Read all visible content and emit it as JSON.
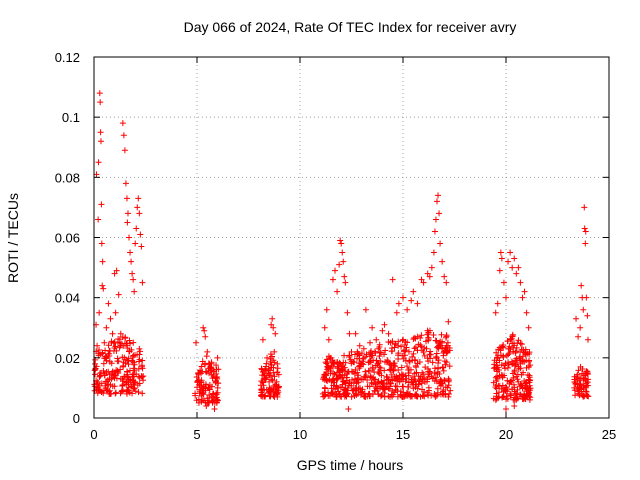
{
  "chart_data": {
    "type": "scatter",
    "title": "Day 066 of 2024, Rate Of TEC Index for receiver avry",
    "xlabel": "GPS time / hours",
    "ylabel": "ROTI / TECUs",
    "xlim": [
      0,
      25
    ],
    "ylim": [
      0,
      0.12
    ],
    "xticks": [
      0,
      5,
      10,
      15,
      20,
      25
    ],
    "xtick_labels": [
      "0",
      "5",
      "10",
      "15",
      "20",
      "25"
    ],
    "yticks": [
      0,
      0.02,
      0.04,
      0.06,
      0.08,
      0.1,
      0.12
    ],
    "ytick_labels": [
      "0",
      "0.02",
      "0.04",
      "0.06",
      "0.08",
      "0.1",
      "0.12"
    ],
    "grid": true,
    "marker": "+",
    "series": [
      {
        "name": "ROTI",
        "color": "#ff0000",
        "points": [
          [
            0.05,
            0.018
          ],
          [
            0.1,
            0.031
          ],
          [
            0.12,
            0.081
          ],
          [
            0.15,
            0.024
          ],
          [
            0.18,
            0.012
          ],
          [
            0.2,
            0.066
          ],
          [
            0.22,
            0.085
          ],
          [
            0.25,
            0.035
          ],
          [
            0.28,
            0.108
          ],
          [
            0.3,
            0.105
          ],
          [
            0.32,
            0.095
          ],
          [
            0.34,
            0.092
          ],
          [
            0.36,
            0.071
          ],
          [
            0.38,
            0.058
          ],
          [
            0.4,
            0.044
          ],
          [
            0.42,
            0.052
          ],
          [
            0.45,
            0.043
          ],
          [
            0.5,
            0.025
          ],
          [
            0.6,
            0.03
          ],
          [
            0.7,
            0.038
          ],
          [
            0.8,
            0.033
          ],
          [
            0.9,
            0.028
          ],
          [
            1.0,
            0.048
          ],
          [
            1.05,
            0.035
          ],
          [
            1.1,
            0.049
          ],
          [
            1.2,
            0.041
          ],
          [
            1.3,
            0.028
          ],
          [
            1.4,
            0.098
          ],
          [
            1.45,
            0.094
          ],
          [
            1.5,
            0.089
          ],
          [
            1.55,
            0.078
          ],
          [
            1.6,
            0.073
          ],
          [
            1.62,
            0.065
          ],
          [
            1.65,
            0.068
          ],
          [
            1.7,
            0.06
          ],
          [
            1.75,
            0.055
          ],
          [
            1.8,
            0.052
          ],
          [
            1.85,
            0.048
          ],
          [
            1.9,
            0.046
          ],
          [
            1.95,
            0.042
          ],
          [
            2.0,
            0.058
          ],
          [
            2.05,
            0.063
          ],
          [
            2.1,
            0.07
          ],
          [
            2.15,
            0.073
          ],
          [
            2.2,
            0.068
          ],
          [
            2.25,
            0.061
          ],
          [
            2.3,
            0.057
          ],
          [
            2.35,
            0.045
          ],
          [
            0.3,
            0.014
          ],
          [
            0.8,
            0.011
          ],
          [
            1.3,
            0.013
          ],
          [
            2.0,
            0.012
          ],
          [
            4.95,
            0.025
          ],
          [
            5.1,
            0.015
          ],
          [
            5.2,
            0.012
          ],
          [
            5.3,
            0.03
          ],
          [
            5.35,
            0.029
          ],
          [
            5.4,
            0.027
          ],
          [
            5.5,
            0.022
          ],
          [
            5.6,
            0.018
          ],
          [
            5.7,
            0.016
          ],
          [
            5.8,
            0.014
          ],
          [
            5.9,
            0.012
          ],
          [
            6.0,
            0.02
          ],
          [
            5.45,
            0.004
          ],
          [
            5.85,
            0.003
          ],
          [
            8.2,
            0.026
          ],
          [
            8.3,
            0.016
          ],
          [
            8.4,
            0.02
          ],
          [
            8.5,
            0.012
          ],
          [
            8.6,
            0.031
          ],
          [
            8.65,
            0.033
          ],
          [
            8.7,
            0.03
          ],
          [
            8.75,
            0.022
          ],
          [
            8.8,
            0.028
          ],
          [
            8.9,
            0.018
          ],
          [
            8.95,
            0.01
          ],
          [
            11.2,
            0.03
          ],
          [
            11.3,
            0.036
          ],
          [
            11.4,
            0.026
          ],
          [
            11.5,
            0.02
          ],
          [
            11.6,
            0.046
          ],
          [
            11.7,
            0.049
          ],
          [
            11.8,
            0.042
          ],
          [
            11.9,
            0.051
          ],
          [
            11.95,
            0.059
          ],
          [
            12.0,
            0.058
          ],
          [
            12.05,
            0.055
          ],
          [
            12.1,
            0.052
          ],
          [
            12.15,
            0.047
          ],
          [
            12.2,
            0.045
          ],
          [
            12.3,
            0.035
          ],
          [
            12.4,
            0.028
          ],
          [
            12.5,
            0.022
          ],
          [
            12.7,
            0.028
          ],
          [
            12.9,
            0.024
          ],
          [
            13.1,
            0.023
          ],
          [
            13.2,
            0.036
          ],
          [
            13.4,
            0.025
          ],
          [
            13.5,
            0.03
          ],
          [
            13.7,
            0.026
          ],
          [
            13.8,
            0.023
          ],
          [
            14.0,
            0.029
          ],
          [
            14.1,
            0.031
          ],
          [
            14.3,
            0.028
          ],
          [
            14.4,
            0.025
          ],
          [
            14.5,
            0.046
          ],
          [
            14.7,
            0.035
          ],
          [
            14.8,
            0.038
          ],
          [
            15.0,
            0.04
          ],
          [
            15.2,
            0.036
          ],
          [
            15.4,
            0.039
          ],
          [
            15.5,
            0.042
          ],
          [
            15.7,
            0.038
          ],
          [
            15.9,
            0.046
          ],
          [
            16.0,
            0.045
          ],
          [
            16.2,
            0.048
          ],
          [
            16.3,
            0.047
          ],
          [
            16.4,
            0.05
          ],
          [
            16.5,
            0.055
          ],
          [
            16.55,
            0.062
          ],
          [
            16.6,
            0.066
          ],
          [
            16.65,
            0.072
          ],
          [
            16.7,
            0.074
          ],
          [
            16.75,
            0.068
          ],
          [
            16.8,
            0.058
          ],
          [
            16.9,
            0.052
          ],
          [
            17.0,
            0.047
          ],
          [
            17.1,
            0.045
          ],
          [
            17.2,
            0.032
          ],
          [
            12.35,
            0.003
          ],
          [
            14.95,
            0.013
          ],
          [
            19.5,
            0.035
          ],
          [
            19.6,
            0.038
          ],
          [
            19.7,
            0.049
          ],
          [
            19.75,
            0.055
          ],
          [
            19.8,
            0.053
          ],
          [
            19.9,
            0.045
          ],
          [
            20.0,
            0.04
          ],
          [
            20.1,
            0.052
          ],
          [
            20.2,
            0.055
          ],
          [
            20.3,
            0.05
          ],
          [
            20.4,
            0.053
          ],
          [
            20.5,
            0.048
          ],
          [
            20.6,
            0.05
          ],
          [
            20.7,
            0.045
          ],
          [
            20.8,
            0.04
          ],
          [
            20.9,
            0.042
          ],
          [
            21.0,
            0.035
          ],
          [
            21.1,
            0.03
          ],
          [
            20.0,
            0.003
          ],
          [
            20.4,
            0.004
          ],
          [
            23.4,
            0.033
          ],
          [
            23.5,
            0.027
          ],
          [
            23.6,
            0.03
          ],
          [
            23.65,
            0.044
          ],
          [
            23.7,
            0.04
          ],
          [
            23.75,
            0.036
          ],
          [
            23.8,
            0.07
          ],
          [
            23.82,
            0.063
          ],
          [
            23.85,
            0.058
          ],
          [
            23.87,
            0.062
          ],
          [
            23.9,
            0.04
          ],
          [
            23.95,
            0.034
          ],
          [
            23.98,
            0.026
          ],
          [
            23.5,
            0.008
          ]
        ]
      }
    ],
    "dense_bands": [
      {
        "x_start": 0.0,
        "x_end": 2.4,
        "y_low": 0.008,
        "y_high": 0.028,
        "peak_at": 1.3,
        "count": 220
      },
      {
        "x_start": 4.9,
        "x_end": 6.05,
        "y_low": 0.005,
        "y_high": 0.021,
        "peak_at": 5.5,
        "count": 110
      },
      {
        "x_start": 8.1,
        "x_end": 9.0,
        "y_low": 0.007,
        "y_high": 0.022,
        "peak_at": 8.6,
        "count": 90
      },
      {
        "x_start": 11.1,
        "x_end": 17.3,
        "y_low": 0.007,
        "y_high": 0.03,
        "peak_at": 16.5,
        "count": 620
      },
      {
        "x_start": 19.4,
        "x_end": 21.2,
        "y_low": 0.006,
        "y_high": 0.028,
        "peak_at": 20.3,
        "count": 220
      },
      {
        "x_start": 23.3,
        "x_end": 24.0,
        "y_low": 0.007,
        "y_high": 0.018,
        "peak_at": 23.7,
        "count": 70
      }
    ]
  }
}
